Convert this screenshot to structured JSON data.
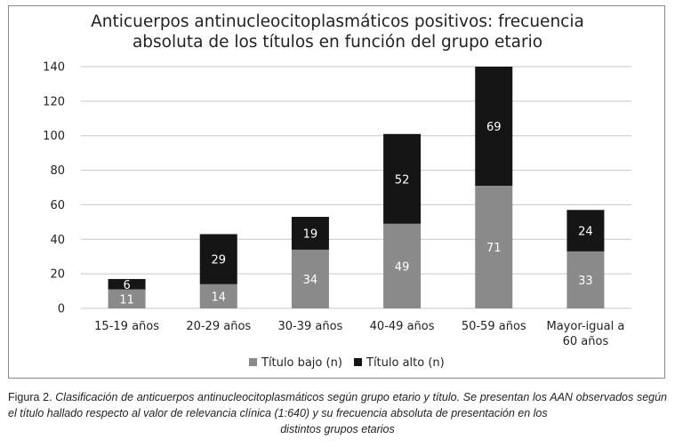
{
  "chart_data": {
    "type": "bar",
    "stacked": true,
    "title_lines": [
      "Anticuerpos antinucleocitoplasmáticos positivos: frecuencia",
      "absoluta de los títulos en función del grupo etario"
    ],
    "categories": [
      [
        "15-19 años"
      ],
      [
        "20-29 años"
      ],
      [
        "30-39 años"
      ],
      [
        "40-49 años"
      ],
      [
        "50-59 años"
      ],
      [
        "Mayor-igual a",
        "60 años"
      ]
    ],
    "series": [
      {
        "name": "Título bajo (n)",
        "color": "#8a8a8a",
        "values": [
          11,
          14,
          34,
          49,
          71,
          33
        ],
        "labels": [
          "11",
          "14",
          "34",
          "49",
          "71",
          "33"
        ]
      },
      {
        "name": "Título alto (n)",
        "color": "#151515",
        "values": [
          6,
          29,
          19,
          52,
          69,
          24
        ],
        "labels": [
          "6",
          "29",
          "19",
          "52",
          "69",
          "24"
        ]
      }
    ],
    "ylim": [
      0,
      140
    ],
    "yticks": [
      0,
      20,
      40,
      60,
      80,
      100,
      120,
      140
    ],
    "ytick_labels": [
      "0",
      "20",
      "40",
      "60",
      "80",
      "100",
      "120",
      "140"
    ],
    "grid": true,
    "legend_position": "bottom"
  },
  "caption": {
    "lead": "Figura 2.",
    "body": "Clasificación de anticuerpos antinucleocitoplasmáticos según grupo etario y título. Se presentan los AAN observados según el título hallado respecto al valor de relevancia clínica (1:640) y su frecuencia absoluta de presentación en los",
    "last_line": "distintos grupos etarios"
  }
}
